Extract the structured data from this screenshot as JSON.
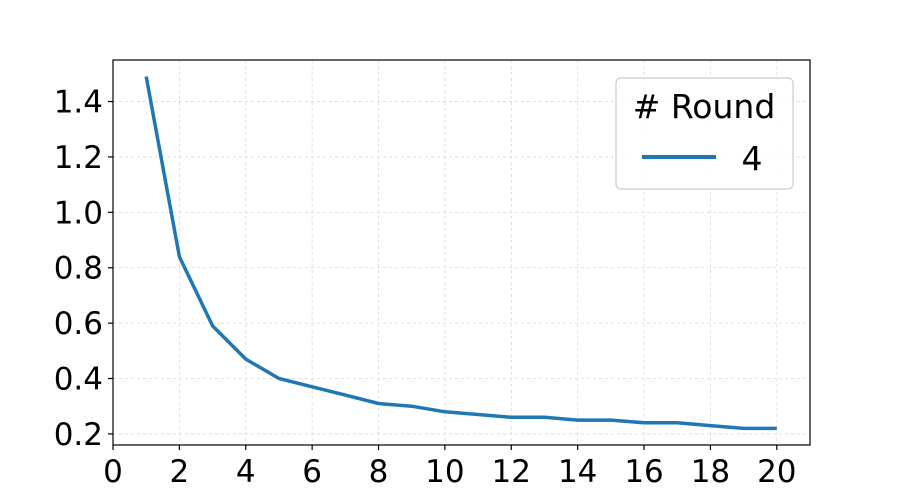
{
  "chart_data": {
    "type": "line",
    "title": "",
    "xlabel": "",
    "ylabel": "",
    "xlim": [
      0,
      21
    ],
    "ylim": [
      0.16,
      1.55
    ],
    "x_ticks": [
      "0",
      "2",
      "4",
      "6",
      "8",
      "10",
      "12",
      "14",
      "16",
      "18",
      "20"
    ],
    "y_ticks": [
      "0.2",
      "0.4",
      "0.6",
      "0.8",
      "1.0",
      "1.2",
      "1.4"
    ],
    "grid": true,
    "legend": {
      "title": "# Round",
      "placement": "top-right"
    },
    "series": [
      {
        "name": "4",
        "color": "#1f77b4",
        "x": [
          1,
          2,
          3,
          4,
          5,
          6,
          7,
          8,
          9,
          10,
          11,
          12,
          13,
          14,
          15,
          16,
          17,
          18,
          19,
          20
        ],
        "y": [
          1.49,
          0.84,
          0.59,
          0.47,
          0.4,
          0.37,
          0.34,
          0.31,
          0.3,
          0.28,
          0.27,
          0.26,
          0.26,
          0.25,
          0.25,
          0.24,
          0.24,
          0.23,
          0.22,
          0.22
        ]
      }
    ]
  }
}
